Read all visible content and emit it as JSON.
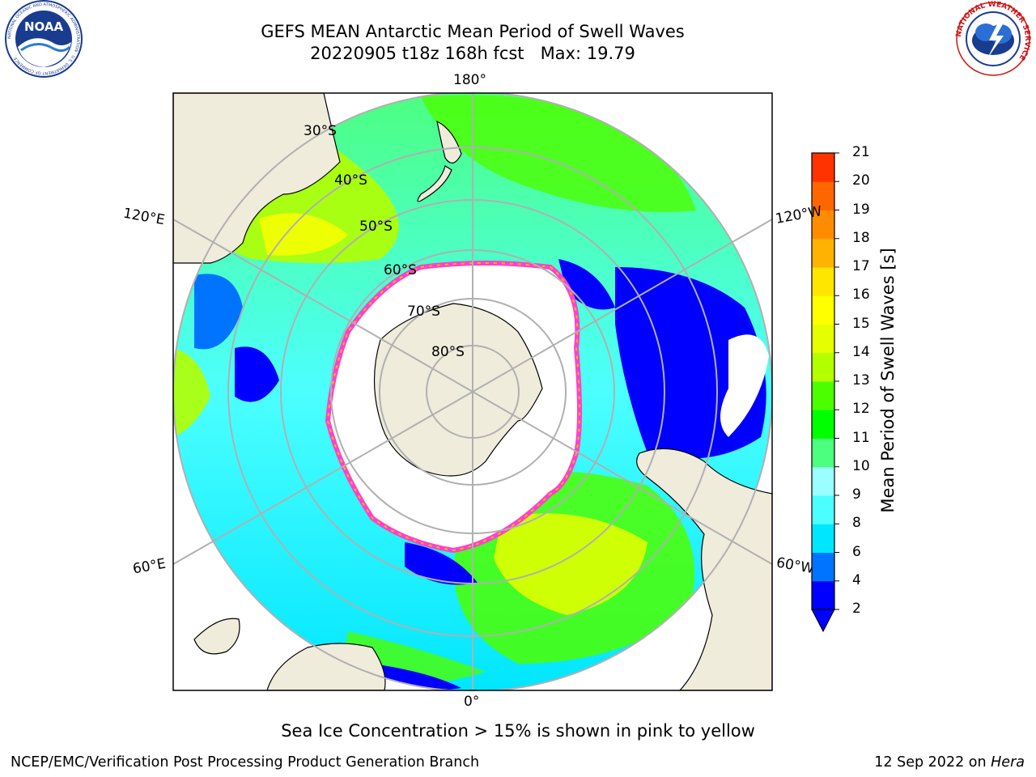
{
  "header": {
    "title_line1": "GEFS MEAN Antarctic Mean Period of Swell Waves",
    "title_line2": "20220905 t18z 168h fcst   Max: 19.79"
  },
  "logos": {
    "left": {
      "icon": "noaa-logo",
      "text": "NOAA",
      "ring_text": "NATIONAL OCEANIC AND ATMOSPHERIC ADMINISTRATION · U.S. DEPARTMENT OF COMMERCE"
    },
    "right": {
      "icon": "nws-logo",
      "ring_text": "NATIONAL WEATHER SERVICE"
    }
  },
  "map": {
    "projection": "south-polar-stereographic",
    "longitude_labels": {
      "top": "180°",
      "bottom": "0°",
      "left_upper": "120°E",
      "left_lower": "60°E",
      "right_upper": "120°W",
      "right_lower": "60°W"
    },
    "latitude_labels": [
      "30°S",
      "40°S",
      "50°S",
      "60°S",
      "70°S",
      "80°S"
    ],
    "colors": {
      "land": "#efecdc",
      "ice_free_mask": "#ffffff",
      "grid": "#b0b0b0",
      "coast": "#000000",
      "sea_ice_edge": "#ff3fd0"
    }
  },
  "colorbar": {
    "label": "Mean Period of Swell Waves [s]",
    "ticks": [
      "2",
      "4",
      "6",
      "8",
      "9",
      "10",
      "11",
      "12",
      "13",
      "14",
      "15",
      "16",
      "17",
      "18",
      "19",
      "20",
      "21"
    ],
    "colors": [
      "#0000ff",
      "#0073ff",
      "#00e6ff",
      "#4cffff",
      "#99ffff",
      "#4cff7f",
      "#00ff00",
      "#4cff00",
      "#b3ff00",
      "#e6ff00",
      "#ffff00",
      "#ffe600",
      "#ffb300",
      "#ff8c00",
      "#ff6600",
      "#ff3300",
      "#ff0000"
    ],
    "extend_min_color": "#0000ff"
  },
  "notes": {
    "sea_ice": "Sea Ice Concentration > 15% is shown in pink to yellow"
  },
  "footer": {
    "left": "NCEP/EMC/Verification Post Processing Product Generation Branch",
    "date": "12 Sep 2022 on ",
    "machine": "Hera"
  }
}
